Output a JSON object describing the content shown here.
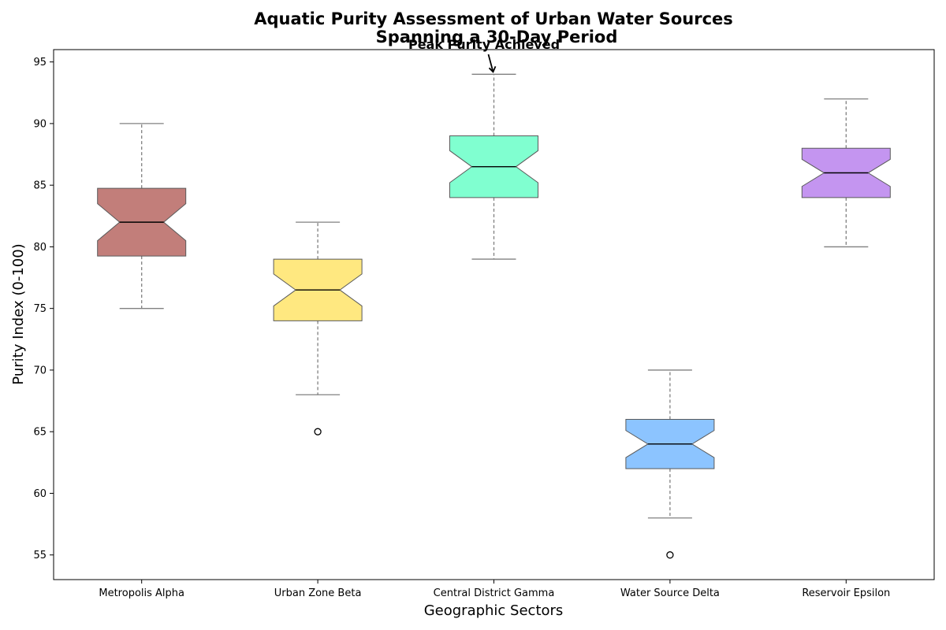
{
  "chart_data": {
    "type": "box",
    "title_lines": [
      "Aquatic Purity Assessment of Urban Water Sources",
      "Spanning a 30-Day Period"
    ],
    "xlabel": "Geographic Sectors",
    "ylabel": "Purity Index (0-100)",
    "ylim": [
      53,
      96
    ],
    "yticks": [
      55,
      60,
      65,
      70,
      75,
      80,
      85,
      90,
      95
    ],
    "notched": true,
    "grid": false,
    "categories": [
      "Metropolis Alpha",
      "Urban Zone Beta",
      "Central District Gamma",
      "Water Source Delta",
      "Reservoir Epsilon"
    ],
    "boxes": [
      {
        "category": "Metropolis Alpha",
        "color": "#c27e7a",
        "whisker_low": 75,
        "q1": 79.25,
        "median": 82,
        "q3": 84.75,
        "whisker_high": 90,
        "notch_low": 80.5,
        "notch_high": 83.5,
        "outliers": []
      },
      {
        "category": "Urban Zone Beta",
        "color": "#ffe880",
        "whisker_low": 68,
        "q1": 74,
        "median": 76.5,
        "q3": 79,
        "whisker_high": 82,
        "notch_low": 75.2,
        "notch_high": 77.8,
        "outliers": [
          65
        ]
      },
      {
        "category": "Central District Gamma",
        "color": "#80ffd0",
        "whisker_low": 79,
        "q1": 84,
        "median": 86.5,
        "q3": 89,
        "whisker_high": 94,
        "notch_low": 85.2,
        "notch_high": 87.8,
        "outliers": []
      },
      {
        "category": "Water Source Delta",
        "color": "#8cc4ff",
        "whisker_low": 58,
        "q1": 62,
        "median": 64,
        "q3": 66,
        "whisker_high": 70,
        "notch_low": 62.9,
        "notch_high": 65.1,
        "outliers": [
          55
        ]
      },
      {
        "category": "Reservoir Epsilon",
        "color": "#c495f0",
        "whisker_low": 80,
        "q1": 84,
        "median": 86,
        "q3": 88,
        "whisker_high": 92,
        "notch_low": 84.9,
        "notch_high": 87.1,
        "outliers": []
      }
    ],
    "annotation": {
      "text": "Peak Purity Achieved",
      "category": "Central District Gamma",
      "value": 94
    }
  }
}
